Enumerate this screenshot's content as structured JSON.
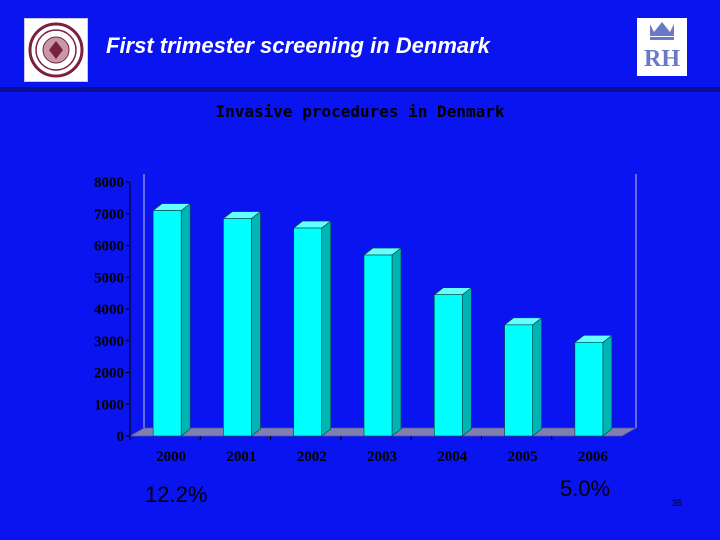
{
  "header": {
    "title": "First trimester screening in Denmark",
    "left_logo": "university-seal-logo",
    "right_logo": "rigshospitalet-crown-logo",
    "right_logo_text": "RH"
  },
  "colors": {
    "background": "#0a14f0",
    "bar_front": "#00ffff",
    "bar_side": "#00b4b4",
    "bar_top": "#66ffff",
    "floor": "#8080b0",
    "tick_text": "#000000"
  },
  "chart_data": {
    "type": "bar",
    "title": "Invasive procedures in Denmark",
    "categories": [
      "2000",
      "2001",
      "2002",
      "2003",
      "2004",
      "2005",
      "2006"
    ],
    "values": [
      7100,
      6850,
      6550,
      5700,
      4450,
      3500,
      2950
    ],
    "ylim": [
      0,
      8000
    ],
    "yticks": [
      0,
      1000,
      2000,
      3000,
      4000,
      5000,
      6000,
      7000,
      8000
    ],
    "xlabel": "",
    "ylabel": "",
    "legend": "none"
  },
  "annotations": {
    "left_percent": "12.2%",
    "right_percent": "5.0%"
  },
  "footer": {
    "page_number": "35"
  }
}
